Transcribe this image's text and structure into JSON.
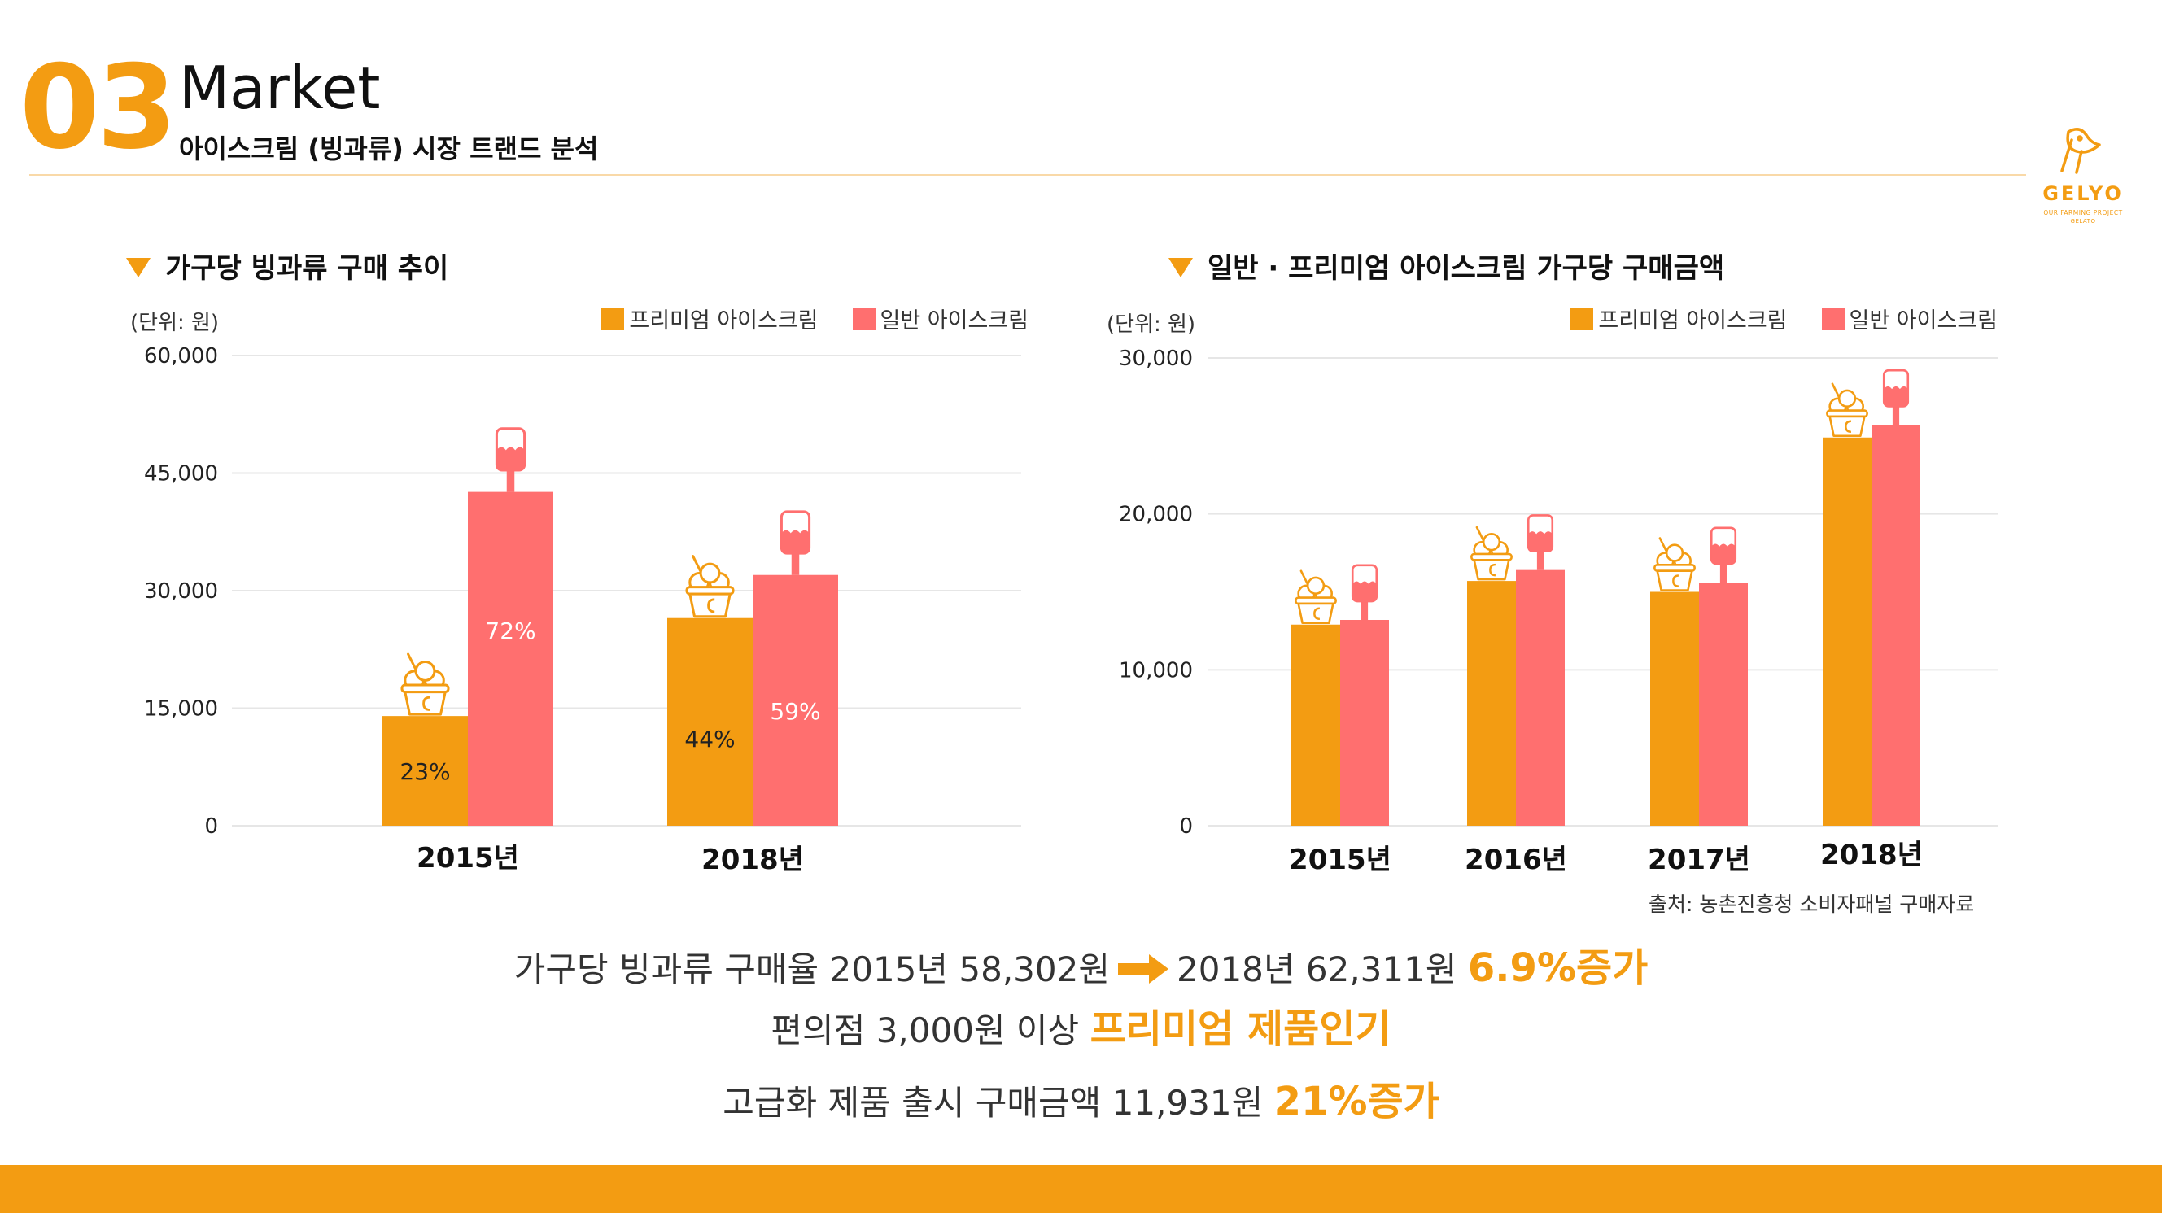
{
  "header": {
    "section_number": "03",
    "title": "Market",
    "subtitle": "아이스크림 (빙과류) 시장 트랜드 분석",
    "logo_text": "GELYO",
    "logo_tagline_1": "OUR FARMING PROJECT",
    "logo_tagline_2": "GELATO"
  },
  "colors": {
    "premium": "#F39C12",
    "regular": "#FF6F6F",
    "accent": "#F39C12"
  },
  "chart_data": [
    {
      "type": "bar",
      "title": "가구당 빙과류 구매 추이",
      "unit_label": "(단위: 원)",
      "categories": [
        "2015년",
        "2018년"
      ],
      "series": [
        {
          "name": "프리미엄 아이스크림",
          "values": [
            14000,
            26500
          ],
          "labels": [
            "23%",
            "44%"
          ]
        },
        {
          "name": "일반 아이스크림",
          "values": [
            42600,
            32000
          ],
          "labels": [
            "72%",
            "59%"
          ]
        }
      ],
      "ylim": [
        0,
        60000
      ],
      "yticks": [
        "0",
        "15,000",
        "30,000",
        "45,000",
        "60,000"
      ],
      "grid": true,
      "legend_position": "top-right"
    },
    {
      "type": "bar",
      "title": "일반 · 프리미엄 아이스크림 가구당 구매금액",
      "unit_label": "(단위: 원)",
      "categories": [
        "2015년",
        "2016년",
        "2017년",
        "2018년"
      ],
      "series": [
        {
          "name": "프리미엄 아이스크림",
          "values": [
            12900,
            15700,
            15000,
            24900
          ]
        },
        {
          "name": "일반 아이스크림",
          "values": [
            13200,
            16400,
            15600,
            25700
          ]
        }
      ],
      "ylim": [
        0,
        30000
      ],
      "yticks": [
        "0",
        "10,000",
        "20,000",
        "30,000"
      ],
      "grid": true,
      "legend_position": "top-right"
    }
  ],
  "source": "출처: 농촌진흥청 소비자패널 구매자료",
  "summary": {
    "line1_pre": "가구당 빙과류 구매율 2015년 58,302원",
    "line1_post": "2018년 62,311원",
    "line1_hl": "6.9%증가",
    "line2_pre": "편의점 3,000원 이상",
    "line2_hl": "프리미엄 제품인기",
    "line3_pre": "고급화 제품 출시 구매금액 11,931원",
    "line3_hl": "21%증가"
  },
  "icons": {
    "premium_bar_icon": "ice-cream-cup-icon",
    "regular_bar_icon": "ice-pop-icon",
    "arrow": "arrow-right-icon",
    "logo": "gelyo-logo-icon"
  }
}
